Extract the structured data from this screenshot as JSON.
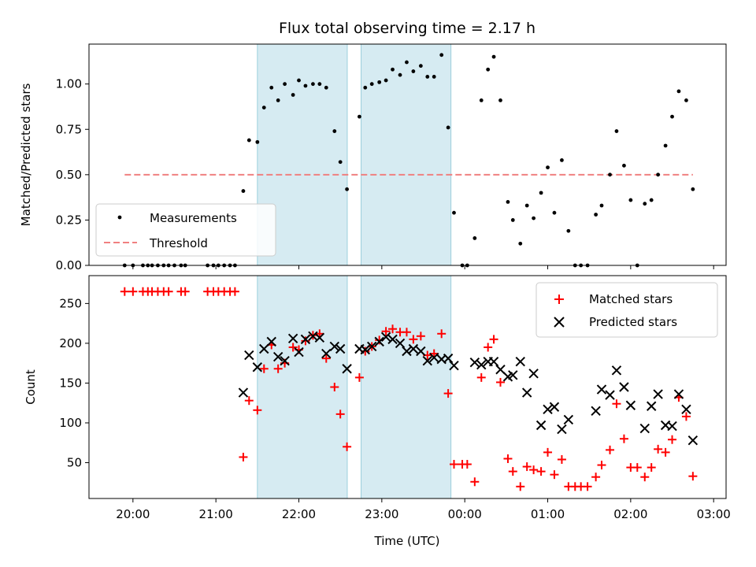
{
  "chart_data": [
    {
      "type": "scatter",
      "title": "Flux total observing time = 2.17 h",
      "xlabel": "",
      "ylabel": "Matched/Predicted stars",
      "ylim": [
        0,
        1.22
      ],
      "yticks": [
        "0.00",
        "0.25",
        "0.50",
        "0.75",
        "1.00"
      ],
      "legend": "lower-left",
      "shaded_regions_utc": [
        [
          "21:30",
          "22:35"
        ],
        [
          "22:45",
          "23:50"
        ]
      ],
      "series": [
        {
          "name": "Measurements",
          "color": "#000000",
          "points": [
            [
              19.9,
              0
            ],
            [
              20.0,
              0
            ],
            [
              20.12,
              0
            ],
            [
              20.18,
              0
            ],
            [
              20.23,
              0
            ],
            [
              20.3,
              0
            ],
            [
              20.37,
              0
            ],
            [
              20.43,
              0
            ],
            [
              20.5,
              0
            ],
            [
              20.58,
              0
            ],
            [
              20.63,
              0
            ],
            [
              20.9,
              0
            ],
            [
              20.97,
              0
            ],
            [
              21.03,
              0
            ],
            [
              21.1,
              0
            ],
            [
              21.17,
              0
            ],
            [
              21.23,
              0
            ],
            [
              21.33,
              0.41
            ],
            [
              21.4,
              0.69
            ],
            [
              21.5,
              0.68
            ],
            [
              21.58,
              0.87
            ],
            [
              21.67,
              0.98
            ],
            [
              21.75,
              0.91
            ],
            [
              21.83,
              1.0
            ],
            [
              21.93,
              0.94
            ],
            [
              22.0,
              1.02
            ],
            [
              22.08,
              0.99
            ],
            [
              22.17,
              1.0
            ],
            [
              22.25,
              1.0
            ],
            [
              22.33,
              0.98
            ],
            [
              22.43,
              0.74
            ],
            [
              22.5,
              0.57
            ],
            [
              22.58,
              0.42
            ],
            [
              22.73,
              0.82
            ],
            [
              22.8,
              0.98
            ],
            [
              22.88,
              1.0
            ],
            [
              22.97,
              1.01
            ],
            [
              23.05,
              1.02
            ],
            [
              23.13,
              1.08
            ],
            [
              23.22,
              1.05
            ],
            [
              23.3,
              1.12
            ],
            [
              23.38,
              1.07
            ],
            [
              23.47,
              1.1
            ],
            [
              23.55,
              1.04
            ],
            [
              23.63,
              1.04
            ],
            [
              23.72,
              1.16
            ],
            [
              23.8,
              0.76
            ],
            [
              23.87,
              0.29
            ],
            [
              23.97,
              0
            ],
            [
              24.03,
              0
            ],
            [
              24.12,
              0.15
            ],
            [
              24.2,
              0.91
            ],
            [
              24.28,
              1.08
            ],
            [
              24.35,
              1.15
            ],
            [
              24.43,
              0.91
            ],
            [
              24.52,
              0.35
            ],
            [
              24.58,
              0.25
            ],
            [
              24.67,
              0.12
            ],
            [
              24.75,
              0.33
            ],
            [
              24.83,
              0.26
            ],
            [
              24.92,
              0.4
            ],
            [
              25.0,
              0.54
            ],
            [
              25.08,
              0.29
            ],
            [
              25.17,
              0.58
            ],
            [
              25.25,
              0.19
            ],
            [
              25.33,
              0
            ],
            [
              25.4,
              0
            ],
            [
              25.48,
              0
            ],
            [
              25.58,
              0.28
            ],
            [
              25.65,
              0.33
            ],
            [
              25.75,
              0.5
            ],
            [
              25.83,
              0.74
            ],
            [
              25.92,
              0.55
            ],
            [
              26.0,
              0.36
            ],
            [
              26.08,
              0
            ],
            [
              26.17,
              0.34
            ],
            [
              26.25,
              0.36
            ],
            [
              26.33,
              0.5
            ],
            [
              26.42,
              0.66
            ],
            [
              26.5,
              0.82
            ],
            [
              26.58,
              0.96
            ],
            [
              26.67,
              0.91
            ],
            [
              26.75,
              0.42
            ]
          ]
        },
        {
          "name": "Threshold",
          "color": "#f08080",
          "points": [
            [
              19.9,
              0.5
            ],
            [
              26.75,
              0.5
            ]
          ]
        }
      ]
    },
    {
      "type": "scatter",
      "title": "",
      "xlabel": "Time (UTC)",
      "ylabel": "Count",
      "ylim": [
        5,
        285
      ],
      "yticks": [
        "50",
        "100",
        "150",
        "200",
        "250"
      ],
      "xticks": [
        "20:00",
        "21:00",
        "22:00",
        "23:00",
        "00:00",
        "01:00",
        "02:00",
        "03:00"
      ],
      "xlim_hours": [
        19.47,
        27.15
      ],
      "legend": "upper-right",
      "series": [
        {
          "name": "Matched stars",
          "color": "#ff0000",
          "marker": "+",
          "points": [
            [
              19.9,
              265
            ],
            [
              20.0,
              265
            ],
            [
              20.12,
              265
            ],
            [
              20.18,
              265
            ],
            [
              20.23,
              265
            ],
            [
              20.3,
              265
            ],
            [
              20.37,
              265
            ],
            [
              20.43,
              265
            ],
            [
              20.58,
              265
            ],
            [
              20.63,
              265
            ],
            [
              20.9,
              265
            ],
            [
              20.97,
              265
            ],
            [
              21.03,
              265
            ],
            [
              21.1,
              265
            ],
            [
              21.17,
              265
            ],
            [
              21.23,
              265
            ],
            [
              21.33,
              57
            ],
            [
              21.4,
              128
            ],
            [
              21.5,
              116
            ],
            [
              21.58,
              168
            ],
            [
              21.67,
              198
            ],
            [
              21.75,
              168
            ],
            [
              21.83,
              175
            ],
            [
              21.93,
              195
            ],
            [
              22.0,
              192
            ],
            [
              22.08,
              203
            ],
            [
              22.17,
              210
            ],
            [
              22.25,
              212
            ],
            [
              22.33,
              181
            ],
            [
              22.43,
              145
            ],
            [
              22.5,
              111
            ],
            [
              22.58,
              70
            ],
            [
              22.73,
              157
            ],
            [
              22.8,
              190
            ],
            [
              22.88,
              196
            ],
            [
              22.97,
              204
            ],
            [
              23.05,
              215
            ],
            [
              23.13,
              218
            ],
            [
              23.22,
              214
            ],
            [
              23.3,
              214
            ],
            [
              23.38,
              205
            ],
            [
              23.47,
              209
            ],
            [
              23.55,
              185
            ],
            [
              23.63,
              187
            ],
            [
              23.72,
              212
            ],
            [
              23.8,
              137
            ],
            [
              23.87,
              48
            ],
            [
              23.97,
              48
            ],
            [
              24.03,
              48
            ],
            [
              24.12,
              26
            ],
            [
              24.2,
              157
            ],
            [
              24.28,
              195
            ],
            [
              24.35,
              205
            ],
            [
              24.43,
              151
            ],
            [
              24.52,
              55
            ],
            [
              24.58,
              39
            ],
            [
              24.67,
              20
            ],
            [
              24.75,
              45
            ],
            [
              24.83,
              41
            ],
            [
              24.92,
              39
            ],
            [
              25.0,
              63
            ],
            [
              25.08,
              35
            ],
            [
              25.17,
              54
            ],
            [
              25.25,
              20
            ],
            [
              25.33,
              20
            ],
            [
              25.4,
              20
            ],
            [
              25.48,
              20
            ],
            [
              25.58,
              32
            ],
            [
              25.65,
              47
            ],
            [
              25.75,
              66
            ],
            [
              25.83,
              124
            ],
            [
              25.92,
              80
            ],
            [
              26.0,
              44
            ],
            [
              26.08,
              44
            ],
            [
              26.17,
              32
            ],
            [
              26.25,
              44
            ],
            [
              26.33,
              67
            ],
            [
              26.42,
              63
            ],
            [
              26.5,
              79
            ],
            [
              26.58,
              132
            ],
            [
              26.67,
              108
            ],
            [
              26.75,
              33
            ]
          ]
        },
        {
          "name": "Predicted stars",
          "color": "#000000",
          "marker": "x",
          "points": [
            [
              21.33,
              138
            ],
            [
              21.4,
              185
            ],
            [
              21.5,
              170
            ],
            [
              21.58,
              193
            ],
            [
              21.67,
              202
            ],
            [
              21.75,
              183
            ],
            [
              21.83,
              178
            ],
            [
              21.93,
              206
            ],
            [
              22.0,
              189
            ],
            [
              22.08,
              205
            ],
            [
              22.17,
              209
            ],
            [
              22.25,
              207
            ],
            [
              22.33,
              187
            ],
            [
              22.43,
              196
            ],
            [
              22.5,
              193
            ],
            [
              22.58,
              168
            ],
            [
              22.73,
              193
            ],
            [
              22.8,
              192
            ],
            [
              22.88,
              196
            ],
            [
              22.97,
              202
            ],
            [
              23.05,
              208
            ],
            [
              23.13,
              205
            ],
            [
              23.22,
              200
            ],
            [
              23.3,
              190
            ],
            [
              23.38,
              193
            ],
            [
              23.47,
              190
            ],
            [
              23.55,
              178
            ],
            [
              23.63,
              182
            ],
            [
              23.72,
              180
            ],
            [
              23.8,
              181
            ],
            [
              23.87,
              172
            ],
            [
              24.12,
              176
            ],
            [
              24.2,
              173
            ],
            [
              24.28,
              177
            ],
            [
              24.35,
              177
            ],
            [
              24.43,
              167
            ],
            [
              24.52,
              158
            ],
            [
              24.58,
              160
            ],
            [
              24.67,
              177
            ],
            [
              24.75,
              138
            ],
            [
              24.83,
              162
            ],
            [
              24.92,
              97
            ],
            [
              25.0,
              117
            ],
            [
              25.08,
              120
            ],
            [
              25.17,
              92
            ],
            [
              25.25,
              104
            ],
            [
              25.58,
              115
            ],
            [
              25.65,
              142
            ],
            [
              25.75,
              135
            ],
            [
              25.83,
              166
            ],
            [
              25.92,
              145
            ],
            [
              26.0,
              122
            ],
            [
              26.17,
              93
            ],
            [
              26.25,
              121
            ],
            [
              26.33,
              136
            ],
            [
              26.42,
              97
            ],
            [
              26.5,
              96
            ],
            [
              26.58,
              136
            ],
            [
              26.67,
              117
            ],
            [
              26.75,
              78
            ]
          ]
        }
      ]
    }
  ]
}
